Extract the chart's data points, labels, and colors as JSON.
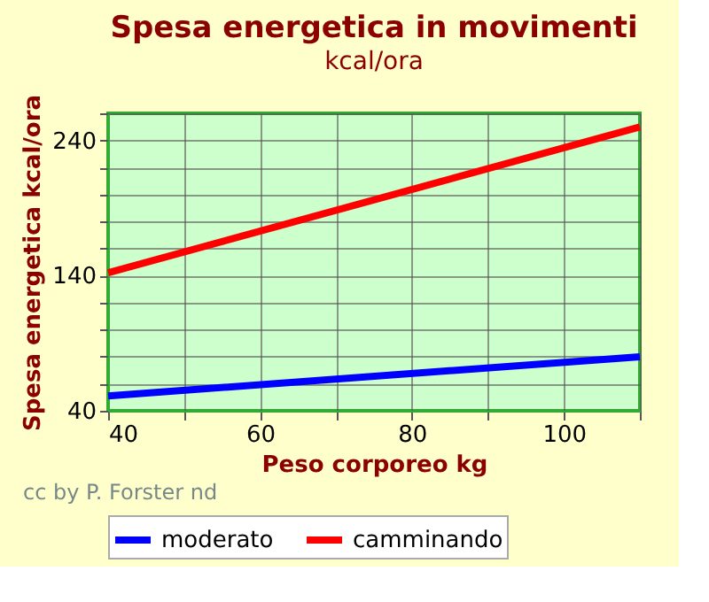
{
  "chart_data": {
    "type": "line",
    "title": "Spesa energetica in movimenti",
    "subtitle": "kcal/ora",
    "xlabel": "Peso corporeo kg",
    "ylabel": "Spesa energetica kcal/ora",
    "x": [
      40,
      110
    ],
    "series": [
      {
        "name": "moderato",
        "color": "#0000ff",
        "values": [
          51,
          80
        ]
      },
      {
        "name": "camminando",
        "color": "#ff0000",
        "values": [
          142,
          250
        ]
      }
    ],
    "xlim": [
      40,
      110
    ],
    "xticks": [
      40,
      {
        "value": 50,
        "label": null
      },
      60,
      {
        "value": 70,
        "label": null
      },
      80,
      {
        "value": 90,
        "label": null
      },
      100,
      {
        "value": 110,
        "label": null
      }
    ],
    "ylim": [
      40,
      260
    ],
    "yticks": [
      40,
      {
        "value": 60,
        "label": null
      },
      {
        "value": 80,
        "label": null
      },
      {
        "value": 100,
        "label": null
      },
      {
        "value": 120,
        "label": null
      },
      140,
      {
        "value": 160,
        "label": null
      },
      {
        "value": 180,
        "label": null
      },
      {
        "value": 200,
        "label": null
      },
      {
        "value": 220,
        "label": null
      },
      240,
      {
        "value": 260,
        "label": null
      }
    ],
    "grid": true,
    "legend": "bottom",
    "marker": "none",
    "line_style": "solid",
    "annotations": [
      "cc by P. Forster nd"
    ]
  }
}
